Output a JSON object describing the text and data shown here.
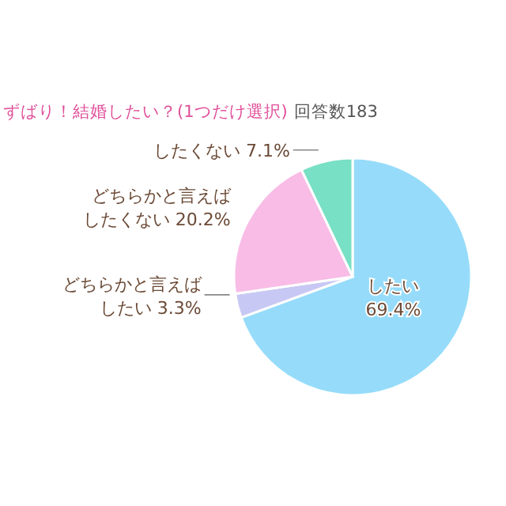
{
  "chart_data": {
    "type": "pie",
    "title": "ずばり！結婚したい？(1つだけ選択)",
    "subtitle": "回答数183",
    "categories": [
      "したい",
      "どちらかと言えばしたい",
      "どちらかと言えばしたくない",
      "したくない"
    ],
    "values": [
      69.4,
      3.3,
      20.2,
      7.1
    ],
    "value_labels": [
      "69.4%",
      "3.3%",
      "20.2%",
      "7.1%"
    ],
    "colors": [
      "#96dcfa",
      "#c8c8f4",
      "#f8bce6",
      "#78e0c4"
    ],
    "legend": false
  }
}
